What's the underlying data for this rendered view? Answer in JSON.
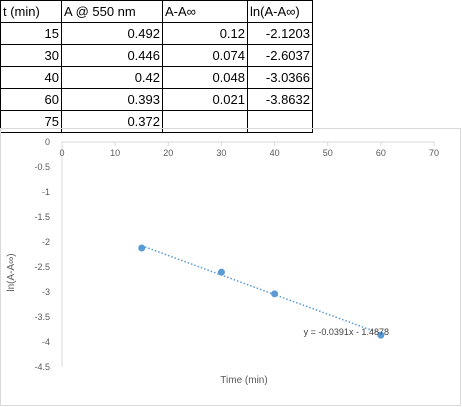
{
  "table": {
    "headers": [
      "t (min)",
      "A @ 550 nm",
      "A-A∞",
      "ln(A-A∞)"
    ],
    "rows": [
      [
        "15",
        "0.492",
        "0.12",
        "-2.1203"
      ],
      [
        "30",
        "0.446",
        "0.074",
        "-2.6037"
      ],
      [
        "40",
        "0.42",
        "0.048",
        "-3.0366"
      ],
      [
        "60",
        "0.393",
        "0.021",
        "-3.8632"
      ],
      [
        "75",
        "0.372",
        "",
        ""
      ]
    ]
  },
  "chart_data": {
    "type": "scatter",
    "title": "",
    "xlabel": "Time (min)",
    "ylabel": "ln(A-A∞)",
    "xlim": [
      0,
      70
    ],
    "ylim": [
      -4.5,
      0
    ],
    "xticks": [
      0,
      10,
      20,
      30,
      40,
      50,
      60,
      70
    ],
    "yticks": [
      0,
      -0.5,
      -1,
      -1.5,
      -2,
      -2.5,
      -3,
      -3.5,
      -4,
      -4.5
    ],
    "x_axis_position": "top",
    "grid": false,
    "legend": "none",
    "series": [
      {
        "x": [
          15,
          30,
          40,
          60
        ],
        "y": [
          -2.1203,
          -2.6037,
          -3.0366,
          -3.8632
        ],
        "color": "#5b9bd5"
      }
    ],
    "trendline": {
      "type": "linear",
      "slope": -0.0391,
      "intercept": -1.4878,
      "x_range": [
        15,
        60
      ],
      "style": "dotted",
      "color": "#5b9bd5",
      "equation_label": "y = -0.0391x - 1.4878"
    }
  }
}
